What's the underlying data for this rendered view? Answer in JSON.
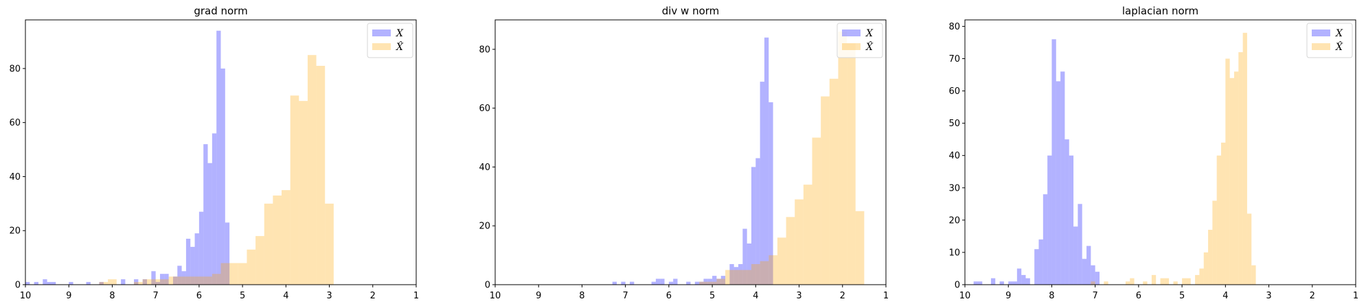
{
  "chart_data": [
    {
      "type": "histogram",
      "title": "grad norm",
      "xlim": [
        10,
        1
      ],
      "ylim": [
        0,
        98
      ],
      "x_ticks": [
        "10",
        "9",
        "8",
        "7",
        "6",
        "5",
        "4",
        "3",
        "2",
        "1"
      ],
      "y_ticks": [
        0,
        20,
        40,
        60,
        80
      ],
      "legend_location": "top-right",
      "series": [
        {
          "name": "X",
          "color": "#6666ff",
          "alpha": 0.5,
          "bin_width": 0.1,
          "bins": [
            [
              10.0,
              1
            ],
            [
              9.8,
              1
            ],
            [
              9.6,
              2
            ],
            [
              9.5,
              1
            ],
            [
              9.4,
              1
            ],
            [
              9.0,
              1
            ],
            [
              8.6,
              1
            ],
            [
              8.3,
              1
            ],
            [
              7.8,
              2
            ],
            [
              7.5,
              2
            ],
            [
              7.3,
              2
            ],
            [
              7.1,
              5
            ],
            [
              7.0,
              1
            ],
            [
              6.9,
              4
            ],
            [
              6.8,
              4
            ],
            [
              6.6,
              3
            ],
            [
              6.5,
              7
            ],
            [
              6.4,
              5
            ],
            [
              6.3,
              17
            ],
            [
              6.2,
              14
            ],
            [
              6.1,
              19
            ],
            [
              6.0,
              27
            ],
            [
              5.9,
              52
            ],
            [
              5.8,
              45
            ],
            [
              5.7,
              56
            ],
            [
              5.6,
              94
            ],
            [
              5.5,
              80
            ],
            [
              5.4,
              23
            ]
          ]
        },
        {
          "name": "X̂",
          "color": "#ffa500",
          "alpha": 0.3,
          "bin_width": 0.2,
          "bins": [
            [
              8.3,
              1
            ],
            [
              8.1,
              2
            ],
            [
              7.5,
              1
            ],
            [
              7.3,
              2
            ],
            [
              7.1,
              2
            ],
            [
              6.9,
              2
            ],
            [
              6.7,
              3
            ],
            [
              6.5,
              3
            ],
            [
              6.3,
              3
            ],
            [
              6.1,
              3
            ],
            [
              5.9,
              3
            ],
            [
              5.7,
              4
            ],
            [
              5.5,
              8
            ],
            [
              5.3,
              8
            ],
            [
              5.1,
              8
            ],
            [
              4.9,
              13
            ],
            [
              4.7,
              18
            ],
            [
              4.5,
              30
            ],
            [
              4.3,
              33
            ],
            [
              4.1,
              35
            ],
            [
              3.9,
              70
            ],
            [
              3.7,
              68
            ],
            [
              3.5,
              85
            ],
            [
              3.3,
              81
            ],
            [
              3.1,
              30
            ]
          ]
        }
      ]
    },
    {
      "type": "histogram",
      "title": "div w norm",
      "xlim": [
        10,
        1
      ],
      "ylim": [
        0,
        90
      ],
      "x_ticks": [
        "10",
        "9",
        "8",
        "7",
        "6",
        "5",
        "4",
        "3",
        "2",
        "1"
      ],
      "y_ticks": [
        0,
        20,
        40,
        60,
        80
      ],
      "legend_location": "top-right",
      "series": [
        {
          "name": "X",
          "color": "#6666ff",
          "alpha": 0.5,
          "bin_width": 0.1,
          "bins": [
            [
              7.3,
              1
            ],
            [
              7.1,
              1
            ],
            [
              6.9,
              1
            ],
            [
              6.4,
              1
            ],
            [
              6.3,
              2
            ],
            [
              6.2,
              2
            ],
            [
              6.0,
              1
            ],
            [
              5.9,
              2
            ],
            [
              5.6,
              1
            ],
            [
              5.4,
              1
            ],
            [
              5.3,
              1
            ],
            [
              5.2,
              2
            ],
            [
              5.1,
              2
            ],
            [
              5.0,
              3
            ],
            [
              4.9,
              2
            ],
            [
              4.8,
              3
            ],
            [
              4.6,
              7
            ],
            [
              4.5,
              6
            ],
            [
              4.4,
              7
            ],
            [
              4.3,
              19
            ],
            [
              4.2,
              14
            ],
            [
              4.1,
              40
            ],
            [
              4.0,
              43
            ],
            [
              3.9,
              69
            ],
            [
              3.8,
              84
            ],
            [
              3.7,
              62
            ]
          ]
        },
        {
          "name": "X̂",
          "color": "#ffa500",
          "alpha": 0.3,
          "bin_width": 0.2,
          "bins": [
            [
              5.3,
              1
            ],
            [
              5.1,
              1
            ],
            [
              4.9,
              2
            ],
            [
              4.7,
              5
            ],
            [
              4.5,
              5
            ],
            [
              4.3,
              5
            ],
            [
              4.1,
              7
            ],
            [
              3.9,
              8
            ],
            [
              3.7,
              10
            ],
            [
              3.5,
              16
            ],
            [
              3.3,
              23
            ],
            [
              3.1,
              29
            ],
            [
              2.9,
              34
            ],
            [
              2.7,
              50
            ],
            [
              2.5,
              64
            ],
            [
              2.3,
              70
            ],
            [
              2.1,
              86
            ],
            [
              1.9,
              82
            ],
            [
              1.7,
              25
            ]
          ]
        }
      ]
    },
    {
      "type": "histogram",
      "title": "laplacian norm",
      "xlim": [
        10,
        1
      ],
      "ylim": [
        0,
        82
      ],
      "x_ticks": [
        "10",
        "9",
        "8",
        "7",
        "6",
        "5",
        "4",
        "3",
        "2",
        "1"
      ],
      "y_ticks": [
        0,
        10,
        20,
        30,
        40,
        50,
        60,
        70,
        80
      ],
      "legend_location": "top-right",
      "series": [
        {
          "name": "X",
          "color": "#6666ff",
          "alpha": 0.5,
          "bin_width": 0.1,
          "bins": [
            [
              9.8,
              1
            ],
            [
              9.7,
              1
            ],
            [
              9.4,
              2
            ],
            [
              9.2,
              1
            ],
            [
              9.0,
              1
            ],
            [
              8.9,
              1
            ],
            [
              8.8,
              5
            ],
            [
              8.7,
              3
            ],
            [
              8.6,
              2
            ],
            [
              8.4,
              11
            ],
            [
              8.3,
              14
            ],
            [
              8.2,
              28
            ],
            [
              8.1,
              40
            ],
            [
              8.0,
              76
            ],
            [
              7.9,
              63
            ],
            [
              7.8,
              66
            ],
            [
              7.7,
              45
            ],
            [
              7.6,
              40
            ],
            [
              7.5,
              18
            ],
            [
              7.4,
              25
            ],
            [
              7.3,
              8
            ],
            [
              7.2,
              12
            ],
            [
              7.1,
              6
            ],
            [
              7.0,
              4
            ]
          ]
        },
        {
          "name": "X̂",
          "color": "#ffa500",
          "alpha": 0.3,
          "bin_width": 0.1,
          "bins": [
            [
              7.1,
              1
            ],
            [
              6.8,
              1
            ],
            [
              6.3,
              1
            ],
            [
              6.2,
              2
            ],
            [
              5.9,
              1
            ],
            [
              5.7,
              3
            ],
            [
              5.5,
              2
            ],
            [
              5.4,
              2
            ],
            [
              5.2,
              1
            ],
            [
              5.0,
              2
            ],
            [
              4.9,
              2
            ],
            [
              4.7,
              3
            ],
            [
              4.6,
              5
            ],
            [
              4.5,
              10
            ],
            [
              4.4,
              17
            ],
            [
              4.3,
              26
            ],
            [
              4.2,
              40
            ],
            [
              4.1,
              44
            ],
            [
              4.0,
              70
            ],
            [
              3.9,
              64
            ],
            [
              3.8,
              66
            ],
            [
              3.7,
              72
            ],
            [
              3.6,
              78
            ],
            [
              3.5,
              22
            ],
            [
              3.4,
              6
            ]
          ]
        }
      ]
    }
  ],
  "legend_labels": {
    "x": "X",
    "xhat": "X̂"
  }
}
